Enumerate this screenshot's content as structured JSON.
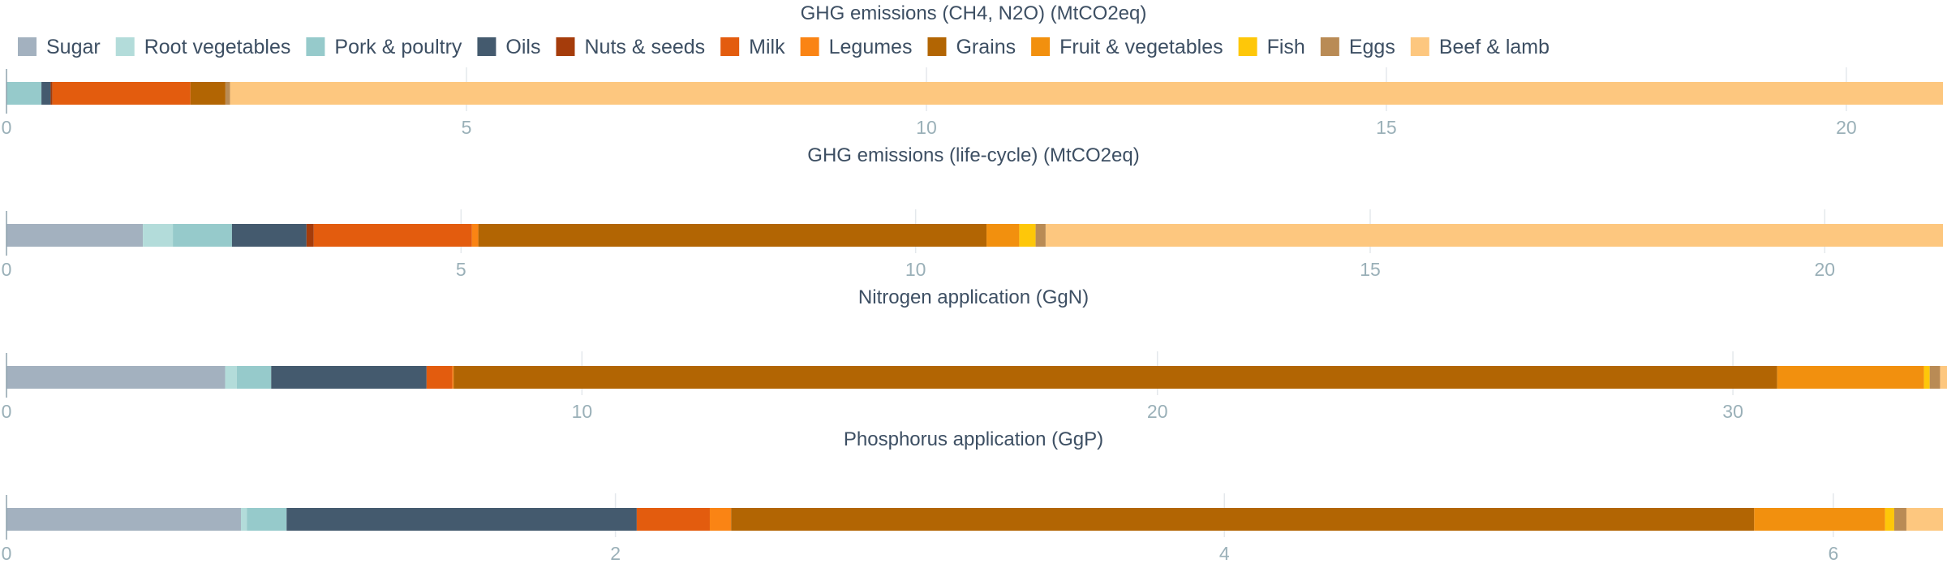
{
  "chart_data": [
    {
      "type": "bar",
      "orientation": "horizontal",
      "stacked": true,
      "title": "GHG emissions (CH4, N2O) (MtCO2eq)",
      "xlim": [
        0,
        21.05
      ],
      "ticks": [
        0,
        5,
        10,
        15,
        20
      ],
      "grid": true,
      "values": [
        0,
        0,
        0.38,
        0.1,
        0.02,
        1.5,
        0,
        0.38,
        0,
        0,
        0.05,
        18.62
      ]
    },
    {
      "type": "bar",
      "orientation": "horizontal",
      "stacked": true,
      "title": "GHG emissions (life-cycle) (MtCO2eq)",
      "xlim": [
        0,
        21.3
      ],
      "ticks": [
        0,
        5,
        10,
        15,
        20
      ],
      "grid": true,
      "values": [
        1.5,
        0.33,
        0.65,
        0.82,
        0.08,
        1.74,
        0.07,
        5.59,
        0.36,
        0.18,
        0.11,
        9.87
      ]
    },
    {
      "type": "bar",
      "orientation": "horizontal",
      "stacked": true,
      "title": "Nitrogen application (GgN)",
      "xlim": [
        0,
        33.65
      ],
      "ticks": [
        0,
        10,
        20,
        30
      ],
      "grid": true,
      "values": [
        3.8,
        0.2,
        0.6,
        2.7,
        0,
        0.45,
        0.02,
        23.0,
        2.55,
        0.1,
        0.18,
        0.2
      ]
    },
    {
      "type": "bar",
      "orientation": "horizontal",
      "stacked": true,
      "title": "Phosphorus application (GgP)",
      "xlim": [
        0,
        6.36
      ],
      "ticks": [
        0,
        2,
        4,
        6
      ],
      "grid": true,
      "values": [
        0.77,
        0.02,
        0.13,
        1.15,
        0,
        0.24,
        0.07,
        3.36,
        0.43,
        0.03,
        0.04,
        0.12
      ]
    }
  ],
  "legend": {
    "placement": "top-left",
    "items": [
      {
        "name": "Sugar",
        "color": "#a3b1bf"
      },
      {
        "name": "Root vegetables",
        "color": "#b3dcda"
      },
      {
        "name": "Pork & poultry",
        "color": "#96cacb"
      },
      {
        "name": "Oils",
        "color": "#445a6e"
      },
      {
        "name": "Nuts & seeds",
        "color": "#a53c0b"
      },
      {
        "name": "Milk",
        "color": "#e35c0e"
      },
      {
        "name": "Legumes",
        "color": "#fa8414"
      },
      {
        "name": "Grains",
        "color": "#b26503"
      },
      {
        "name": "Fruit & vegetables",
        "color": "#f2900e"
      },
      {
        "name": "Fish",
        "color": "#fec709"
      },
      {
        "name": "Eggs",
        "color": "#b98b55"
      },
      {
        "name": "Beef & lamb",
        "color": "#fdc77f"
      }
    ]
  },
  "colors": {
    "text": "#3d4f63",
    "tick_text": "#9ab0b8",
    "grid": "#e4e8ec",
    "axis": "#8fa3ad"
  }
}
